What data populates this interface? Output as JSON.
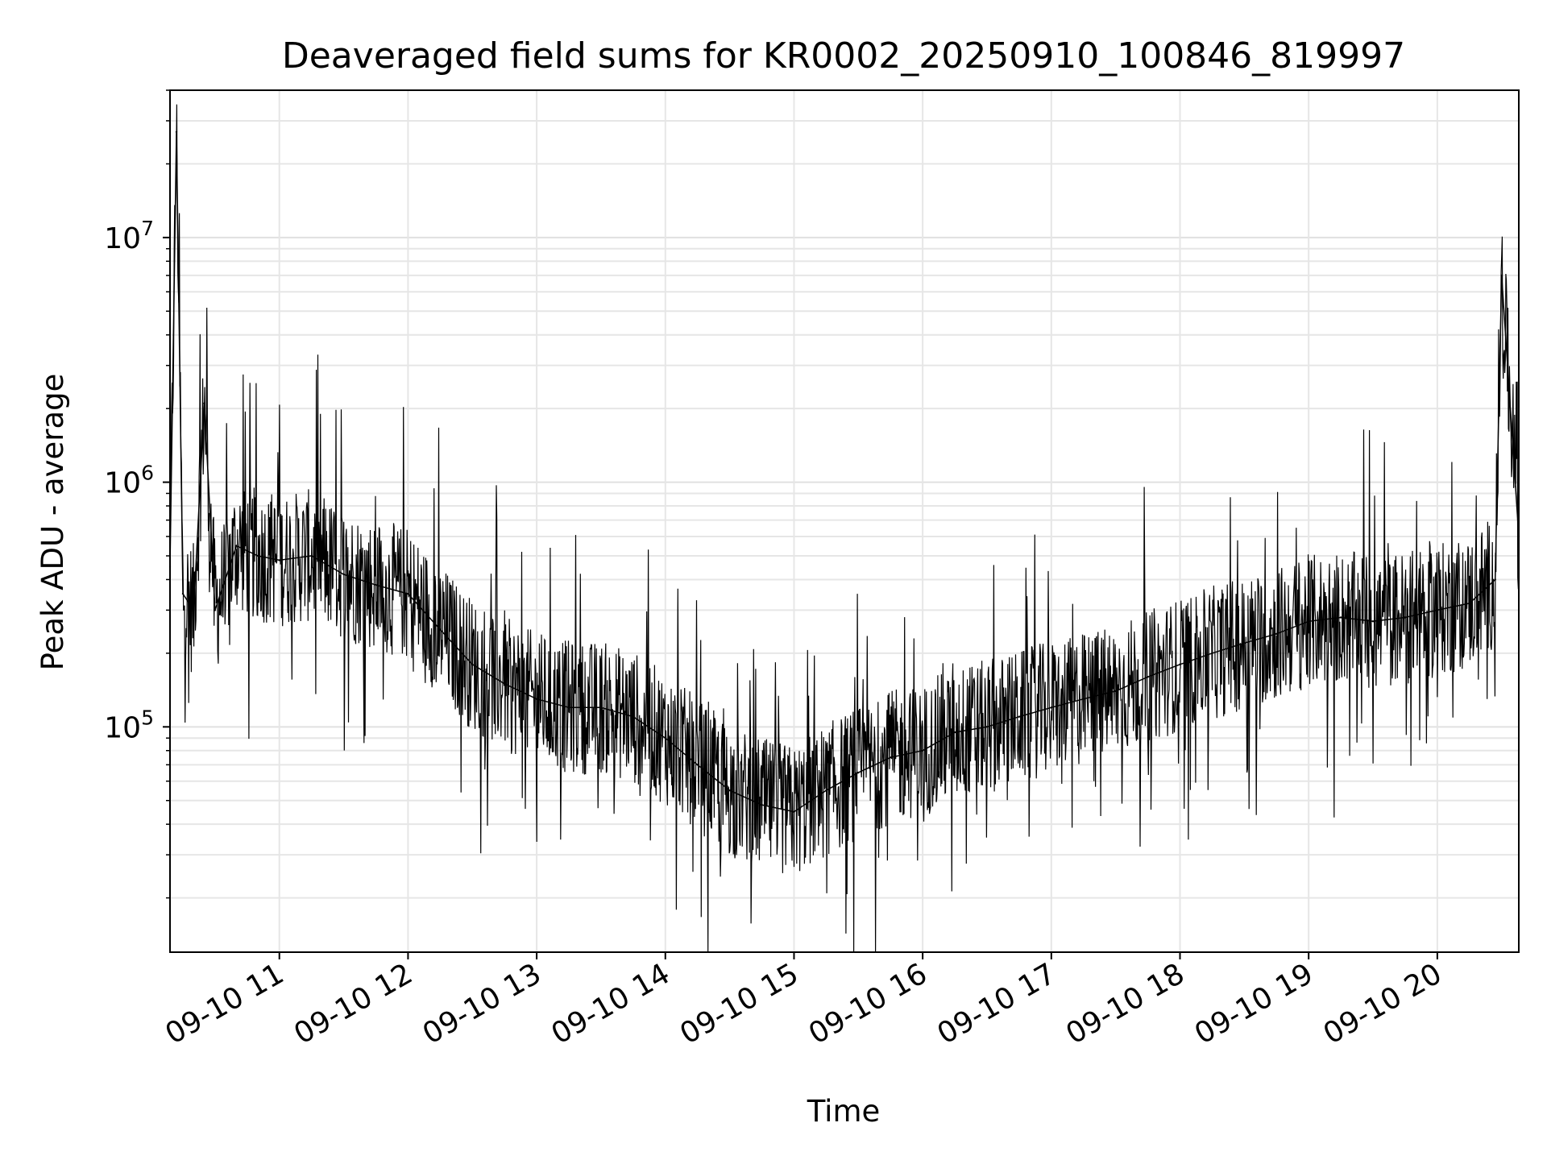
{
  "chart_data": {
    "type": "line",
    "title": "Deaveraged field sums for KR0002_20250910_100846_819997",
    "xlabel": "Time",
    "ylabel": "Peak ADU - average",
    "yscale": "log",
    "ylim": [
      12000,
      40000000
    ],
    "xlim": [
      "2025-09-10 10:09",
      "2025-09-10 20:38"
    ],
    "grid": true,
    "line_color": "#000000",
    "x_ticks": [
      "09-10 11",
      "09-10 12",
      "09-10 13",
      "09-10 14",
      "09-10 15",
      "09-10 16",
      "09-10 17",
      "09-10 18",
      "09-10 19",
      "09-10 20"
    ],
    "y_ticks": [
      {
        "base": "10",
        "exp": "5",
        "value": 100000
      },
      {
        "base": "10",
        "exp": "6",
        "value": 1000000
      },
      {
        "base": "10",
        "exp": "7",
        "value": 10000000
      }
    ],
    "series": [
      {
        "x": [
          "2025-09-10 10:09",
          "2025-09-10 10:12",
          "2025-09-10 10:15",
          "2025-09-10 10:20",
          "2025-09-10 10:25",
          "2025-09-10 10:30",
          "2025-09-10 10:40",
          "2025-09-10 10:50",
          "2025-09-10 11:00",
          "2025-09-10 11:15",
          "2025-09-10 11:30",
          "2025-09-10 11:45",
          "2025-09-10 12:00",
          "2025-09-10 12:15",
          "2025-09-10 12:30",
          "2025-09-10 12:45",
          "2025-09-10 13:00",
          "2025-09-10 13:15",
          "2025-09-10 13:30",
          "2025-09-10 13:45",
          "2025-09-10 14:00",
          "2025-09-10 14:15",
          "2025-09-10 14:30",
          "2025-09-10 14:45",
          "2025-09-10 15:00",
          "2025-09-10 15:15",
          "2025-09-10 15:30",
          "2025-09-10 15:45",
          "2025-09-10 16:00",
          "2025-09-10 16:15",
          "2025-09-10 16:30",
          "2025-09-10 16:45",
          "2025-09-10 17:00",
          "2025-09-10 17:15",
          "2025-09-10 17:30",
          "2025-09-10 17:45",
          "2025-09-10 18:00",
          "2025-09-10 18:15",
          "2025-09-10 18:30",
          "2025-09-10 18:45",
          "2025-09-10 19:00",
          "2025-09-10 19:15",
          "2025-09-10 19:30",
          "2025-09-10 19:45",
          "2025-09-10 20:00",
          "2025-09-10 20:15",
          "2025-09-10 20:27",
          "2025-09-10 20:30",
          "2025-09-10 20:38"
        ],
        "y": [
          450000,
          27000000,
          350000,
          300000,
          2100000,
          300000,
          550000,
          500000,
          480000,
          500000,
          420000,
          380000,
          350000,
          250000,
          180000,
          150000,
          130000,
          120000,
          120000,
          110000,
          90000,
          70000,
          55000,
          48000,
          45000,
          55000,
          65000,
          75000,
          80000,
          95000,
          100000,
          110000,
          120000,
          130000,
          140000,
          160000,
          180000,
          200000,
          220000,
          240000,
          270000,
          280000,
          270000,
          280000,
          300000,
          320000,
          400000,
          7000000,
          600000
        ]
      }
    ]
  }
}
